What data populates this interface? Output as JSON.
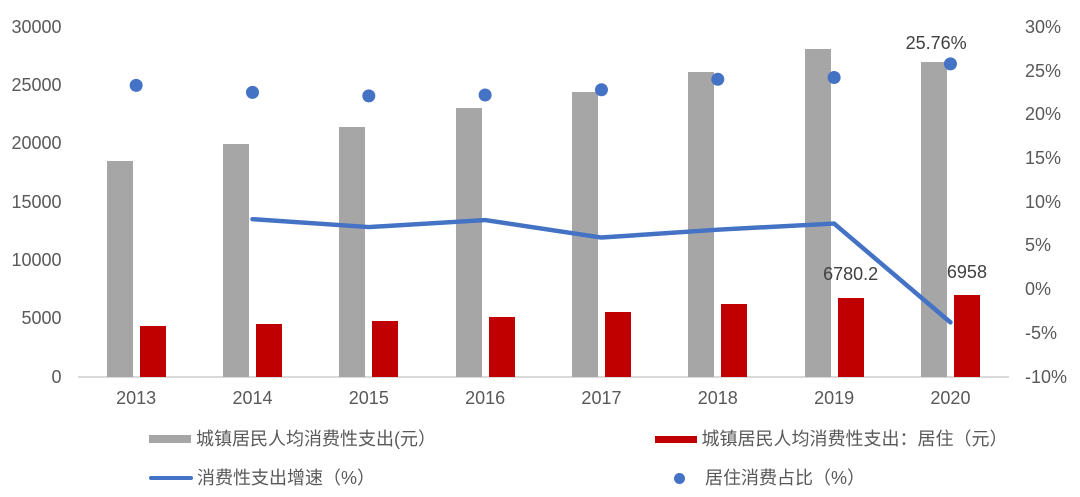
{
  "chart_data": {
    "type": "combo",
    "categories": [
      "2013",
      "2014",
      "2015",
      "2016",
      "2017",
      "2018",
      "2019",
      "2020"
    ],
    "series": [
      {
        "name": "城镇居民人均消费性支出(元）",
        "type": "bar",
        "axis": "left",
        "color": "#a6a6a6",
        "values": [
          18487.5,
          19968.1,
          21392.4,
          23078.9,
          24445.0,
          26112.3,
          28063.4,
          27007.3
        ]
      },
      {
        "name": "城镇居民人均消费性支出：居住（元）",
        "type": "bar",
        "axis": "left",
        "color": "#c00000",
        "values": [
          4301.0,
          4490.5,
          4726.0,
          5113.7,
          5564.2,
          6255.3,
          6780.2,
          6958.0
        ]
      },
      {
        "name": "消费性支出增速（%）",
        "type": "line",
        "axis": "right",
        "color": "#4472c4",
        "values": [
          null,
          8.0,
          7.1,
          7.9,
          5.9,
          6.8,
          7.5,
          -3.8
        ]
      },
      {
        "name": "居住消费占比（%）",
        "type": "scatter",
        "axis": "right",
        "color": "#4472c4",
        "values": [
          23.3,
          22.5,
          22.1,
          22.2,
          22.8,
          24.0,
          24.2,
          25.76
        ]
      }
    ],
    "left_axis": {
      "min": 0,
      "max": 30000,
      "step": 5000,
      "tick_labels": [
        "0",
        "5000",
        "10000",
        "15000",
        "20000",
        "25000",
        "30000"
      ]
    },
    "right_axis": {
      "min": -10,
      "max": 30,
      "step": 5,
      "tick_labels": [
        "-10%",
        "-5%",
        "0%",
        "5%",
        "10%",
        "15%",
        "20%",
        "25%",
        "30%"
      ]
    },
    "grid": false,
    "legend_position": "bottom",
    "data_labels": [
      {
        "series": 1,
        "category": "2019",
        "text": "6780.2"
      },
      {
        "series": 1,
        "category": "2020",
        "text": "6958"
      },
      {
        "series": 3,
        "category": "2020",
        "text": "25.76%"
      }
    ],
    "colors": {
      "background": "#ffffff",
      "axis_line": "#d9d9d9",
      "axis_text": "#595959",
      "data_label_text": "#404040"
    }
  }
}
